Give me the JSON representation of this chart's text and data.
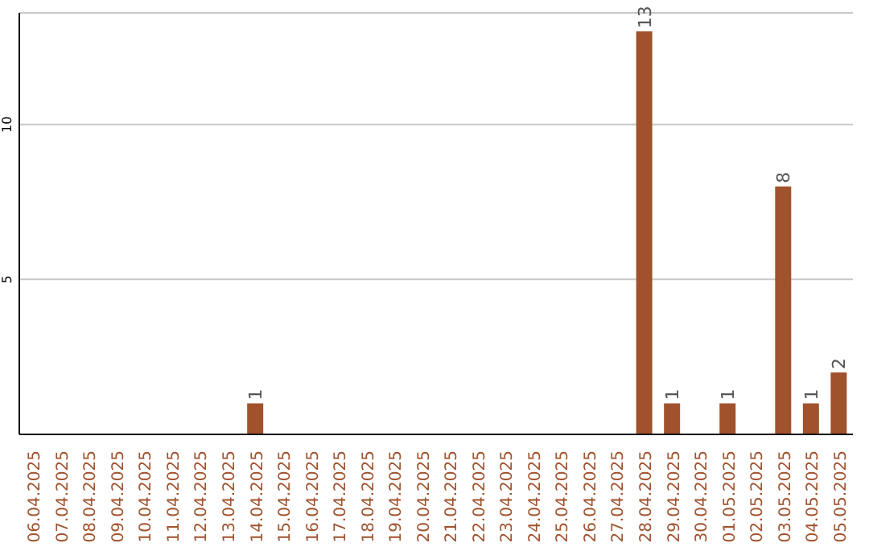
{
  "chart_data": {
    "type": "bar",
    "categories": [
      "06.04.2025",
      "07.04.2025",
      "08.04.2025",
      "09.04.2025",
      "10.04.2025",
      "11.04.2025",
      "12.04.2025",
      "13.04.2025",
      "14.04.2025",
      "15.04.2025",
      "16.04.2025",
      "17.04.2025",
      "18.04.2025",
      "19.04.2025",
      "20.04.2025",
      "21.04.2025",
      "22.04.2025",
      "23.04.2025",
      "24.04.2025",
      "25.04.2025",
      "26.04.2025",
      "27.04.2025",
      "28.04.2025",
      "29.04.2025",
      "30.04.2025",
      "01.05.2025",
      "02.05.2025",
      "03.05.2025",
      "04.05.2025",
      "05.05.2025"
    ],
    "values": [
      0,
      0,
      0,
      0,
      0,
      0,
      0,
      0,
      1,
      0,
      0,
      0,
      0,
      0,
      0,
      0,
      0,
      0,
      0,
      0,
      0,
      0,
      13,
      1,
      0,
      1,
      0,
      8,
      1,
      2
    ],
    "value_labels": [
      null,
      null,
      null,
      null,
      null,
      null,
      null,
      null,
      "1",
      null,
      null,
      null,
      null,
      null,
      null,
      null,
      null,
      null,
      null,
      null,
      null,
      null,
      "13",
      "1",
      null,
      "1",
      null,
      "8",
      "1",
      "2"
    ],
    "color": "#a0522d",
    "ylim": [
      0,
      13.6
    ],
    "yticks": [
      5,
      10
    ],
    "grid": "y"
  }
}
